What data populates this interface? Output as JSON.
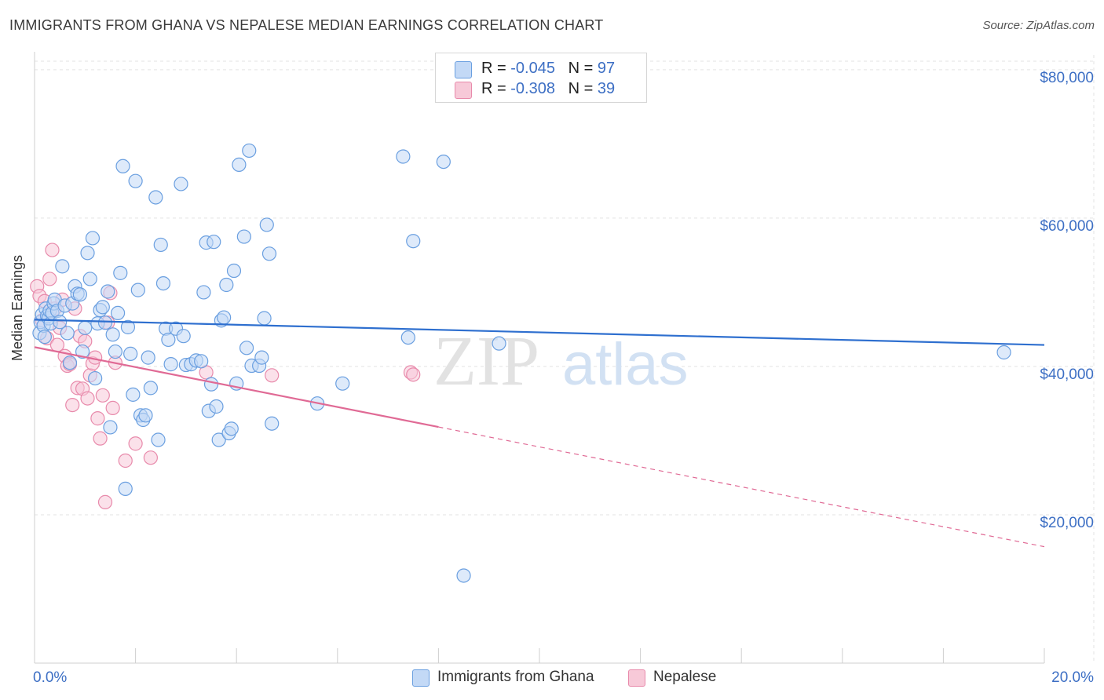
{
  "header": {
    "title": "IMMIGRANTS FROM GHANA VS NEPALESE MEDIAN EARNINGS CORRELATION CHART",
    "source": "Source: ZipAtlas.com"
  },
  "watermark": {
    "zip": "ZIP",
    "atlas": "atlas"
  },
  "colors": {
    "blue": "#6a9fe0",
    "blue_fill": "#c3d9f6",
    "blue_line": "#2e6fcf",
    "pink": "#e88aab",
    "pink_fill": "#f7c9d8",
    "pink_line": "#e06a95",
    "axis_text": "#3d6fc4",
    "grid": "#e3e3e3"
  },
  "legend_top": [
    {
      "r_label": "R = ",
      "r_value": "-0.045",
      "n_label": "N = ",
      "n_value": "97"
    },
    {
      "r_label": "R = ",
      "r_value": "-0.308",
      "n_label": "N = ",
      "n_value": "39"
    }
  ],
  "chart_data": {
    "type": "scatter",
    "title": "IMMIGRANTS FROM GHANA VS NEPALESE MEDIAN EARNINGS CORRELATION CHART",
    "xlabel": "",
    "ylabel": "Median Earnings",
    "xlim": [
      0,
      20
    ],
    "ylim": [
      0,
      82000
    ],
    "x_tick_labels": [
      "0.0%",
      "20.0%"
    ],
    "y_ticks": [
      20000,
      40000,
      60000,
      80000
    ],
    "y_tick_labels": [
      "$20,000",
      "$40,000",
      "$60,000",
      "$80,000"
    ],
    "grid": true,
    "legend_position": "bottom",
    "series": [
      {
        "name": "Immigrants from Ghana",
        "color": "#6a9fe0",
        "r": "-0.045",
        "n": "97",
        "trend": {
          "x": [
            0,
            20
          ],
          "y": [
            46300,
            42900
          ],
          "dashed_from": null
        },
        "points": [
          [
            0.1,
            44500
          ],
          [
            0.12,
            46000
          ],
          [
            0.15,
            47000
          ],
          [
            0.18,
            45500
          ],
          [
            0.2,
            44000
          ],
          [
            0.22,
            47800
          ],
          [
            0.25,
            46800
          ],
          [
            0.28,
            46500
          ],
          [
            0.3,
            47500
          ],
          [
            0.32,
            45800
          ],
          [
            0.35,
            47200
          ],
          [
            0.38,
            48500
          ],
          [
            0.4,
            49000
          ],
          [
            0.45,
            47500
          ],
          [
            0.5,
            46000
          ],
          [
            0.55,
            53500
          ],
          [
            0.6,
            48200
          ],
          [
            0.65,
            44500
          ],
          [
            0.7,
            40500
          ],
          [
            0.75,
            48500
          ],
          [
            0.8,
            50800
          ],
          [
            0.85,
            49800
          ],
          [
            0.9,
            49700
          ],
          [
            0.95,
            42000
          ],
          [
            1.0,
            45200
          ],
          [
            1.05,
            55300
          ],
          [
            1.1,
            51800
          ],
          [
            1.15,
            57300
          ],
          [
            1.2,
            38400
          ],
          [
            1.25,
            45800
          ],
          [
            1.3,
            47600
          ],
          [
            1.35,
            48000
          ],
          [
            1.4,
            45900
          ],
          [
            1.45,
            50100
          ],
          [
            1.5,
            31800
          ],
          [
            1.55,
            44300
          ],
          [
            1.6,
            42000
          ],
          [
            1.65,
            47200
          ],
          [
            1.7,
            52600
          ],
          [
            1.75,
            67000
          ],
          [
            1.8,
            23500
          ],
          [
            1.85,
            45300
          ],
          [
            1.9,
            41700
          ],
          [
            1.95,
            36200
          ],
          [
            2.0,
            65000
          ],
          [
            2.05,
            50300
          ],
          [
            2.1,
            33400
          ],
          [
            2.15,
            32800
          ],
          [
            2.2,
            33400
          ],
          [
            2.25,
            41200
          ],
          [
            2.3,
            37100
          ],
          [
            2.4,
            62800
          ],
          [
            2.45,
            30100
          ],
          [
            2.5,
            56400
          ],
          [
            2.55,
            51200
          ],
          [
            2.6,
            45100
          ],
          [
            2.65,
            43600
          ],
          [
            2.7,
            40300
          ],
          [
            2.8,
            45100
          ],
          [
            2.9,
            64600
          ],
          [
            2.95,
            44100
          ],
          [
            3.0,
            40200
          ],
          [
            3.1,
            40300
          ],
          [
            3.2,
            40800
          ],
          [
            3.3,
            40700
          ],
          [
            3.35,
            50000
          ],
          [
            3.4,
            56700
          ],
          [
            3.45,
            34000
          ],
          [
            3.5,
            37600
          ],
          [
            3.55,
            56800
          ],
          [
            3.6,
            34600
          ],
          [
            3.65,
            30100
          ],
          [
            3.7,
            46200
          ],
          [
            3.75,
            46600
          ],
          [
            3.8,
            51000
          ],
          [
            3.85,
            31000
          ],
          [
            3.9,
            31600
          ],
          [
            3.95,
            52900
          ],
          [
            4.0,
            37700
          ],
          [
            4.05,
            67200
          ],
          [
            4.15,
            57500
          ],
          [
            4.2,
            42500
          ],
          [
            4.25,
            69100
          ],
          [
            4.3,
            40100
          ],
          [
            4.45,
            40100
          ],
          [
            4.5,
            41200
          ],
          [
            4.55,
            46500
          ],
          [
            4.6,
            59100
          ],
          [
            4.65,
            55200
          ],
          [
            4.7,
            32300
          ],
          [
            5.6,
            35000
          ],
          [
            6.1,
            37700
          ],
          [
            7.3,
            68300
          ],
          [
            7.4,
            43900
          ],
          [
            7.5,
            56900
          ],
          [
            8.1,
            67600
          ],
          [
            8.5,
            11800
          ],
          [
            9.2,
            43100
          ],
          [
            19.2,
            41900
          ]
        ]
      },
      {
        "name": "Nepalese",
        "color": "#e88aab",
        "r": "-0.308",
        "n": "39",
        "trend": {
          "x": [
            0,
            20
          ],
          "y": [
            42600,
            15700
          ],
          "dashed_from": 8.0
        },
        "points": [
          [
            0.05,
            50800
          ],
          [
            0.1,
            49500
          ],
          [
            0.15,
            46200
          ],
          [
            0.2,
            48800
          ],
          [
            0.25,
            43800
          ],
          [
            0.3,
            51800
          ],
          [
            0.35,
            55700
          ],
          [
            0.4,
            47800
          ],
          [
            0.45,
            42900
          ],
          [
            0.5,
            45200
          ],
          [
            0.55,
            49000
          ],
          [
            0.6,
            41400
          ],
          [
            0.65,
            40100
          ],
          [
            0.7,
            40300
          ],
          [
            0.75,
            34800
          ],
          [
            0.8,
            47800
          ],
          [
            0.85,
            37100
          ],
          [
            0.9,
            44100
          ],
          [
            0.95,
            37000
          ],
          [
            1.0,
            43400
          ],
          [
            1.05,
            35700
          ],
          [
            1.1,
            38800
          ],
          [
            1.15,
            40400
          ],
          [
            1.2,
            41200
          ],
          [
            1.25,
            33000
          ],
          [
            1.3,
            30300
          ],
          [
            1.35,
            36100
          ],
          [
            1.4,
            21700
          ],
          [
            1.45,
            45900
          ],
          [
            1.5,
            49900
          ],
          [
            1.55,
            34400
          ],
          [
            1.6,
            40500
          ],
          [
            1.8,
            27300
          ],
          [
            2.0,
            29600
          ],
          [
            2.3,
            27700
          ],
          [
            3.4,
            39200
          ],
          [
            4.7,
            38800
          ],
          [
            7.45,
            39200
          ],
          [
            7.5,
            38900
          ]
        ]
      }
    ]
  },
  "legend_bottom": [
    {
      "label": "Immigrants from Ghana"
    },
    {
      "label": "Nepalese"
    }
  ]
}
